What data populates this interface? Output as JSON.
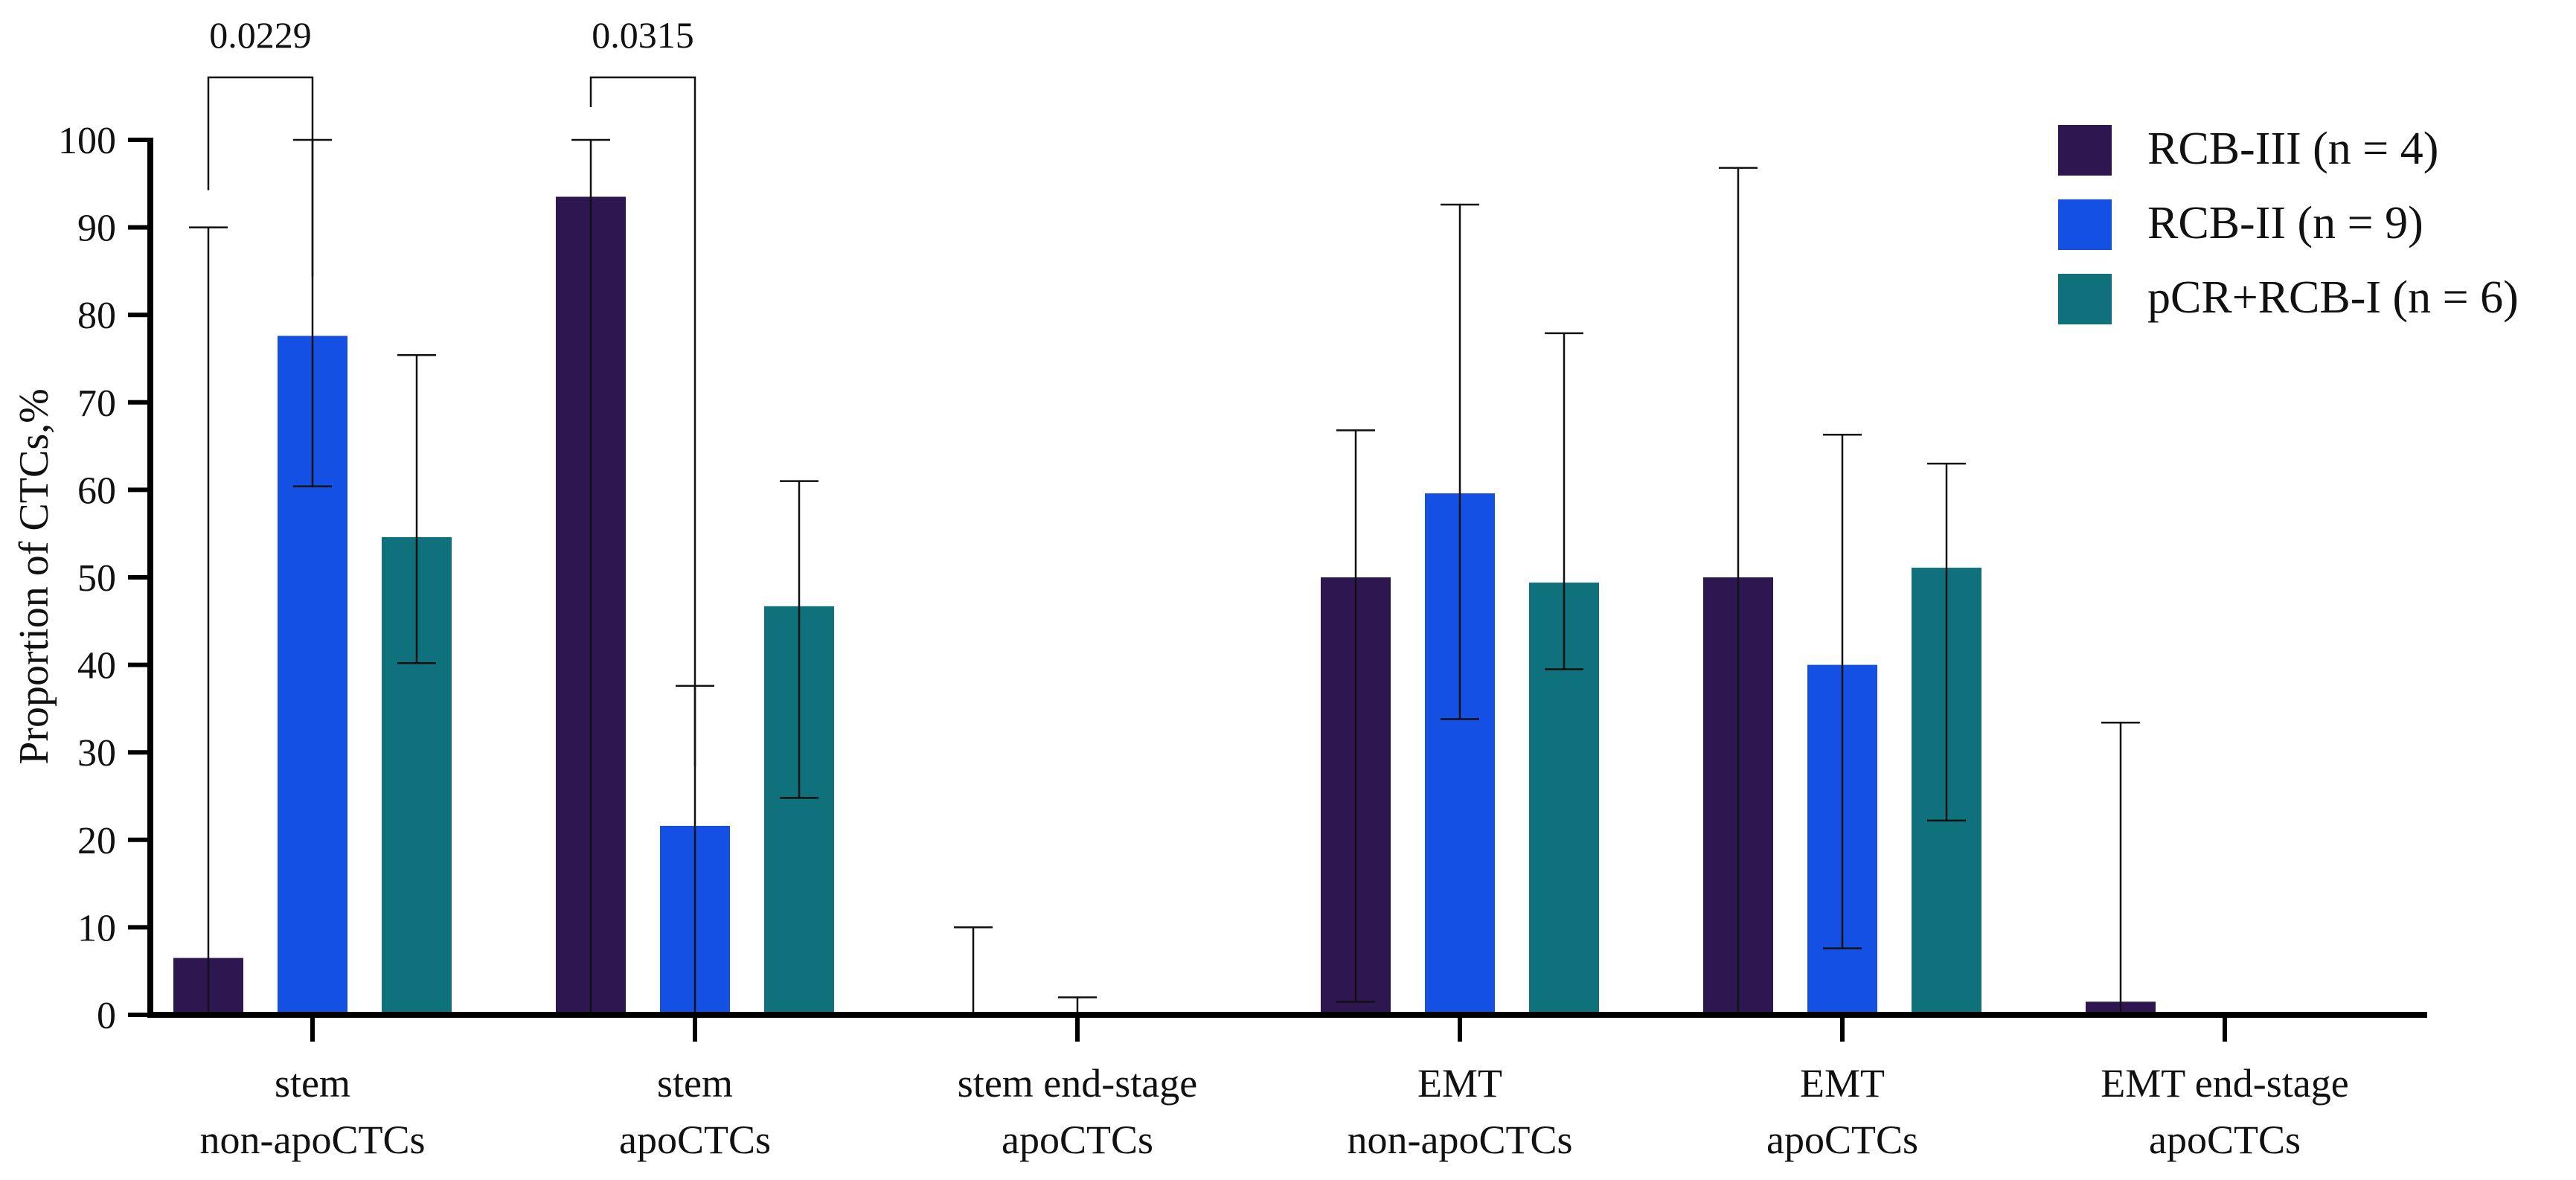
{
  "chart_data": {
    "type": "bar",
    "title": "",
    "xlabel": "",
    "ylabel": "Proportion of CTCs,%",
    "ylim": [
      0,
      100
    ],
    "yticks": [
      0,
      10,
      20,
      30,
      40,
      50,
      60,
      70,
      80,
      90,
      100
    ],
    "grid": false,
    "legend_position": "top-right",
    "categories": [
      [
        "stem",
        "non-apoCTCs"
      ],
      [
        "stem",
        "apoCTCs"
      ],
      [
        "stem end-stage",
        "apoCTCs"
      ],
      [
        "EMT",
        "non-apoCTCs"
      ],
      [
        "EMT",
        "apoCTCs"
      ],
      [
        "EMT end-stage",
        "apoCTCs"
      ]
    ],
    "series": [
      {
        "name": "RCB-III (n = 4)",
        "color": "#2e1650",
        "values": [
          6.5,
          93.5,
          0,
          50,
          50,
          1.5
        ],
        "error_low": [
          0,
          0,
          0,
          1.5,
          0,
          0
        ],
        "error_high": [
          90,
          100,
          10,
          66.8,
          96.8,
          33.4
        ]
      },
      {
        "name": "RCB-II (n = 9)",
        "color": "#1450e4",
        "values": [
          77.6,
          21.6,
          0,
          59.6,
          40,
          0
        ],
        "error_low": [
          60.4,
          0,
          0,
          33.8,
          7.6,
          0
        ],
        "error_high": [
          100,
          37.6,
          2,
          92.6,
          66.3,
          0
        ]
      },
      {
        "name": "pCR+RCB-I (n = 6)",
        "color": "#0e717b",
        "values": [
          54.6,
          46.7,
          0,
          49.4,
          51.1,
          0
        ],
        "error_low": [
          40.2,
          24.8,
          0,
          39.5,
          22.2,
          0
        ],
        "error_high": [
          75.4,
          61,
          0,
          77.9,
          63,
          0
        ]
      }
    ],
    "annotations": [
      {
        "text": "0.0229",
        "category": 0,
        "from_series": 0,
        "to_series": 1
      },
      {
        "text": "0.0315",
        "category": 1,
        "from_series": 0,
        "to_series": 1
      }
    ]
  }
}
